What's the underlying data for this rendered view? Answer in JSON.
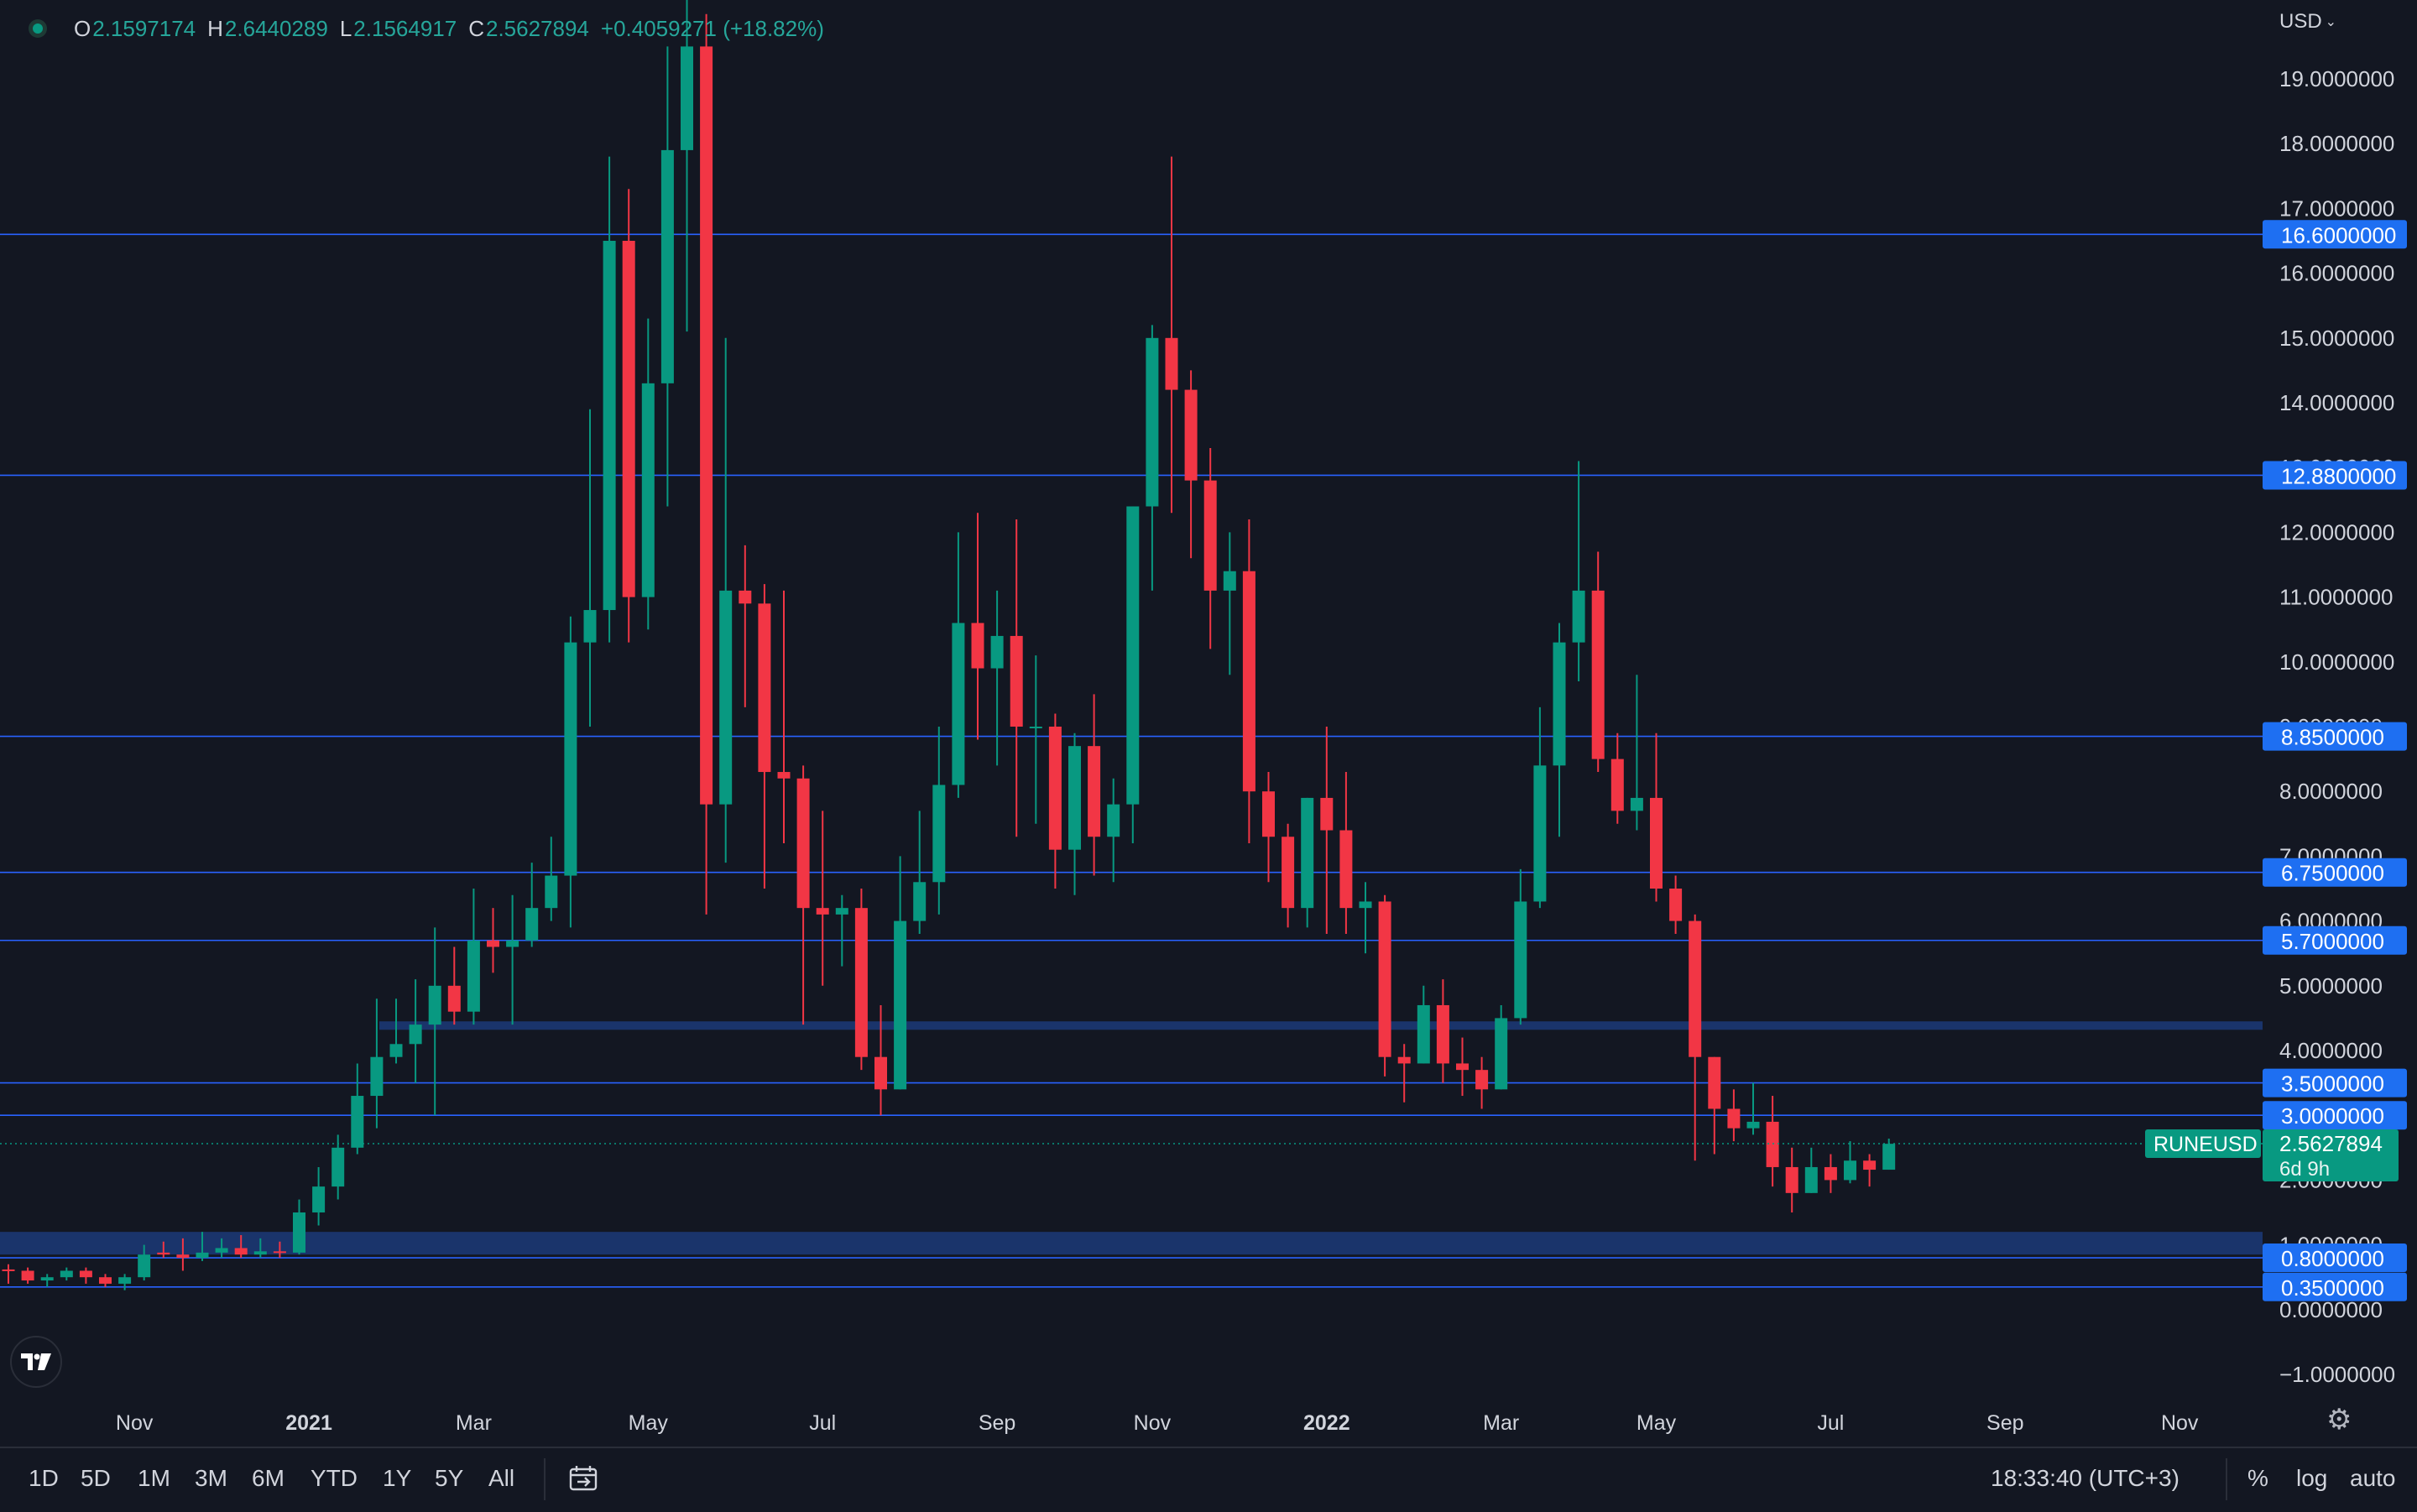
{
  "header": {
    "ohlc": [
      {
        "k": "O",
        "v": "2.1597174"
      },
      {
        "k": "H",
        "v": "2.6440289"
      },
      {
        "k": "L",
        "v": "2.1564917"
      },
      {
        "k": "C",
        "v": "2.5627894"
      },
      {
        "k": "",
        "v": "+0.4059271 (+18.82%)"
      }
    ],
    "currency": "USD"
  },
  "colors": {
    "background": "#131722",
    "up": "#089981",
    "down": "#f23645",
    "level_line": "#2962ff",
    "level_badge": "#1e6ff2",
    "zone": "#1c3a78",
    "axis_text": "#d1d4dc"
  },
  "chart_data": {
    "type": "candlestick",
    "symbol": "RUNEUSD",
    "timeframe": "weekly",
    "ylim": [
      -1.0,
      20.0
    ],
    "y_ticks": [
      "19.0000000",
      "18.0000000",
      "17.0000000",
      "16.0000000",
      "15.0000000",
      "14.0000000",
      "13.0000000",
      "12.0000000",
      "11.0000000",
      "10.0000000",
      "9.0000000",
      "8.0000000",
      "7.0000000",
      "6.0000000",
      "5.0000000",
      "4.0000000",
      "3.0000000",
      "2.0000000",
      "1.0000000",
      "0.0000000",
      "−1.0000000"
    ],
    "y_tick_values": [
      19,
      18,
      17,
      16,
      15,
      14,
      13,
      12,
      11,
      10,
      9,
      8,
      7,
      6,
      5,
      4,
      3,
      2,
      1,
      0,
      -1
    ],
    "x_ticks": [
      {
        "label": "Nov",
        "bold": false,
        "idx": 6.5
      },
      {
        "label": "2021",
        "bold": true,
        "idx": 15.5
      },
      {
        "label": "Mar",
        "bold": false,
        "idx": 24
      },
      {
        "label": "May",
        "bold": false,
        "idx": 33
      },
      {
        "label": "Jul",
        "bold": false,
        "idx": 42
      },
      {
        "label": "Sep",
        "bold": false,
        "idx": 51
      },
      {
        "label": "Nov",
        "bold": false,
        "idx": 59
      },
      {
        "label": "2022",
        "bold": true,
        "idx": 68
      },
      {
        "label": "Mar",
        "bold": false,
        "idx": 77
      },
      {
        "label": "May",
        "bold": false,
        "idx": 85
      },
      {
        "label": "Jul",
        "bold": false,
        "idx": 94
      },
      {
        "label": "Sep",
        "bold": false,
        "idx": 103
      },
      {
        "label": "Nov",
        "bold": false,
        "idx": 112
      }
    ],
    "levels": [
      16.6,
      12.88,
      8.85,
      6.75,
      5.7,
      3.5,
      3.0,
      0.8,
      0.35
    ],
    "level_labels": [
      "16.6000000",
      "12.8800000",
      "8.8500000",
      "6.7500000",
      "5.7000000",
      "3.5000000",
      "3.0000000",
      "0.8000000",
      "0.3500000"
    ],
    "zones": [
      [
        4.32,
        4.45
      ],
      [
        0.85,
        1.2
      ]
    ],
    "current_price": 2.5627894,
    "current_price_label": "2.5627894",
    "countdown": "6d 9h",
    "candles": [
      [
        0.62,
        0.6,
        0.7,
        0.4
      ],
      [
        0.6,
        0.45,
        0.65,
        0.4
      ],
      [
        0.45,
        0.5,
        0.55,
        0.35
      ],
      [
        0.5,
        0.6,
        0.65,
        0.45
      ],
      [
        0.6,
        0.5,
        0.65,
        0.4
      ],
      [
        0.5,
        0.4,
        0.55,
        0.35
      ],
      [
        0.4,
        0.5,
        0.55,
        0.3
      ],
      [
        0.5,
        0.85,
        1.0,
        0.45
      ],
      [
        0.88,
        0.85,
        1.05,
        0.8
      ],
      [
        0.85,
        0.8,
        1.1,
        0.6
      ],
      [
        0.8,
        0.88,
        1.2,
        0.75
      ],
      [
        0.88,
        0.95,
        1.1,
        0.8
      ],
      [
        0.95,
        0.85,
        1.15,
        0.8
      ],
      [
        0.85,
        0.9,
        1.1,
        0.8
      ],
      [
        0.9,
        0.88,
        1.05,
        0.8
      ],
      [
        0.88,
        1.5,
        1.7,
        0.85
      ],
      [
        1.5,
        1.9,
        2.2,
        1.3
      ],
      [
        1.9,
        2.5,
        2.7,
        1.7
      ],
      [
        2.5,
        3.3,
        3.8,
        2.4
      ],
      [
        3.3,
        3.9,
        4.8,
        2.8
      ],
      [
        3.9,
        4.1,
        4.8,
        3.8
      ],
      [
        4.1,
        4.4,
        5.1,
        3.5
      ],
      [
        4.4,
        5.0,
        5.9,
        3.0
      ],
      [
        5.0,
        4.6,
        5.6,
        4.4
      ],
      [
        4.6,
        5.7,
        6.5,
        4.4
      ],
      [
        5.7,
        5.6,
        6.2,
        5.2
      ],
      [
        5.6,
        5.7,
        6.4,
        4.4
      ],
      [
        5.7,
        6.2,
        6.9,
        5.6
      ],
      [
        6.2,
        6.7,
        7.3,
        6.0
      ],
      [
        6.7,
        10.3,
        10.7,
        5.9
      ],
      [
        10.3,
        10.8,
        13.9,
        9.0
      ],
      [
        10.8,
        16.5,
        17.8,
        10.3
      ],
      [
        16.5,
        11.0,
        17.3,
        10.3
      ],
      [
        11.0,
        14.3,
        15.3,
        10.5
      ],
      [
        14.3,
        17.9,
        19.5,
        12.4
      ],
      [
        17.9,
        19.5,
        20.5,
        15.1
      ],
      [
        19.5,
        7.8,
        20.0,
        6.1
      ],
      [
        7.8,
        11.1,
        15.0,
        6.9
      ],
      [
        11.1,
        10.9,
        11.8,
        9.3
      ],
      [
        10.9,
        8.3,
        11.2,
        6.5
      ],
      [
        8.3,
        8.2,
        11.1,
        7.2
      ],
      [
        8.2,
        6.2,
        8.4,
        4.4
      ],
      [
        6.2,
        6.1,
        7.7,
        5.0
      ],
      [
        6.1,
        6.2,
        6.4,
        5.3
      ],
      [
        6.2,
        3.9,
        6.5,
        3.7
      ],
      [
        3.9,
        3.4,
        4.7,
        3.0
      ],
      [
        3.4,
        6.0,
        7.0,
        3.4
      ],
      [
        6.0,
        6.6,
        7.7,
        5.8
      ],
      [
        6.6,
        8.1,
        9.0,
        6.1
      ],
      [
        8.1,
        10.6,
        12.0,
        7.9
      ],
      [
        10.6,
        9.9,
        12.3,
        8.8
      ],
      [
        9.9,
        10.4,
        11.1,
        8.4
      ],
      [
        10.4,
        9.0,
        12.2,
        7.3
      ],
      [
        9.0,
        9.0,
        10.1,
        7.5
      ],
      [
        9.0,
        7.1,
        9.2,
        6.5
      ],
      [
        7.1,
        8.7,
        8.9,
        6.4
      ],
      [
        8.7,
        7.3,
        9.5,
        6.7
      ],
      [
        7.3,
        7.8,
        8.2,
        6.6
      ],
      [
        7.8,
        12.4,
        12.4,
        7.2
      ],
      [
        12.4,
        15.0,
        15.2,
        11.1
      ],
      [
        15.0,
        14.2,
        17.8,
        12.3
      ],
      [
        14.2,
        12.8,
        14.5,
        11.6
      ],
      [
        12.8,
        11.1,
        13.3,
        10.2
      ],
      [
        11.1,
        11.4,
        12.0,
        9.8
      ],
      [
        11.4,
        8.0,
        12.2,
        7.2
      ],
      [
        8.0,
        7.3,
        8.3,
        6.6
      ],
      [
        7.3,
        6.2,
        7.5,
        5.9
      ],
      [
        6.2,
        7.9,
        7.9,
        5.9
      ],
      [
        7.9,
        7.4,
        9.0,
        5.8
      ],
      [
        7.4,
        6.2,
        8.3,
        5.8
      ],
      [
        6.2,
        6.3,
        6.6,
        5.5
      ],
      [
        6.3,
        3.9,
        6.4,
        3.6
      ],
      [
        3.9,
        3.8,
        4.1,
        3.2
      ],
      [
        3.8,
        4.7,
        5.0,
        3.8
      ],
      [
        4.7,
        3.8,
        5.1,
        3.5
      ],
      [
        3.8,
        3.7,
        4.2,
        3.3
      ],
      [
        3.7,
        3.4,
        3.9,
        3.1
      ],
      [
        3.4,
        4.5,
        4.7,
        3.4
      ],
      [
        4.5,
        6.3,
        6.8,
        4.4
      ],
      [
        6.3,
        8.4,
        9.3,
        6.2
      ],
      [
        8.4,
        10.3,
        10.6,
        7.3
      ],
      [
        10.3,
        11.1,
        13.1,
        9.7
      ],
      [
        11.1,
        8.5,
        11.7,
        8.3
      ],
      [
        8.5,
        7.7,
        8.9,
        7.5
      ],
      [
        7.7,
        7.9,
        9.8,
        7.4
      ],
      [
        7.9,
        6.5,
        8.9,
        6.3
      ],
      [
        6.5,
        6.0,
        6.7,
        5.8
      ],
      [
        6.0,
        3.9,
        6.1,
        2.3
      ],
      [
        3.9,
        3.1,
        3.9,
        2.4
      ],
      [
        3.1,
        2.8,
        3.4,
        2.6
      ],
      [
        2.8,
        2.9,
        3.5,
        2.7
      ],
      [
        2.9,
        2.2,
        3.3,
        1.9
      ],
      [
        2.2,
        1.8,
        2.5,
        1.5
      ],
      [
        1.8,
        2.2,
        2.5,
        1.8
      ],
      [
        2.2,
        2.0,
        2.4,
        1.8
      ],
      [
        2.0,
        2.3,
        2.6,
        1.95
      ],
      [
        2.3,
        2.16,
        2.4,
        1.9
      ],
      [
        2.16,
        2.56,
        2.64,
        2.16
      ]
    ]
  },
  "bottom_bar": {
    "ranges": [
      "1D",
      "5D",
      "1M",
      "3M",
      "6M",
      "YTD",
      "1Y",
      "5Y",
      "All"
    ],
    "time": "18:33:40 (UTC+3)",
    "options": [
      "%",
      "log",
      "auto"
    ]
  }
}
